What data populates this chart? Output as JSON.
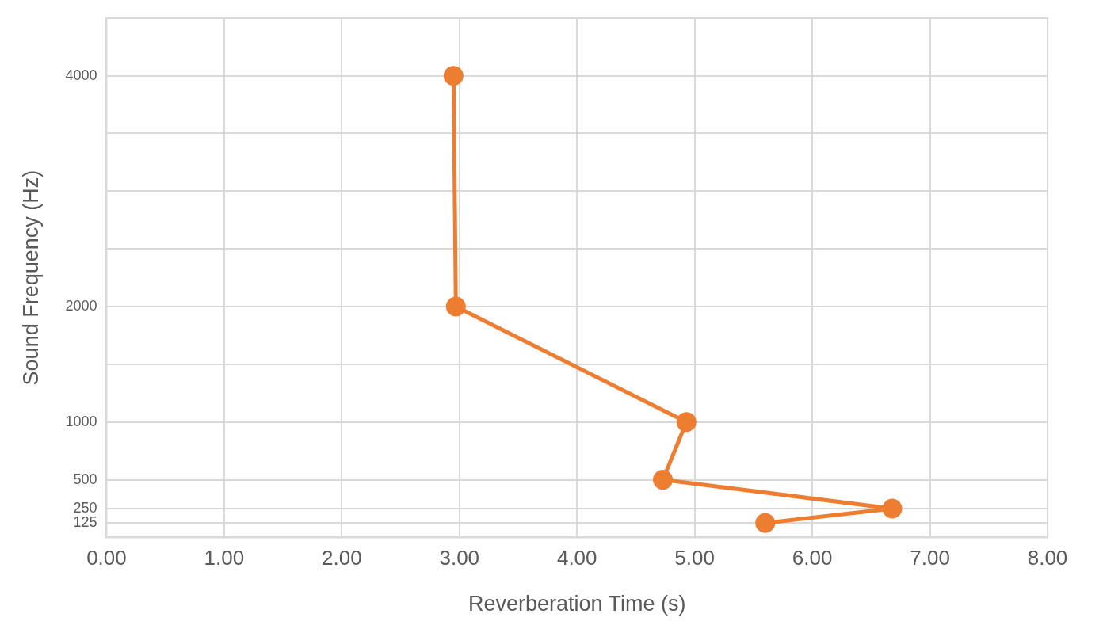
{
  "chart_data": {
    "type": "line",
    "xlabel": "Reverberation Time (s)",
    "ylabel": "Sound Frequency (Hz)",
    "x": [
      2.95,
      2.97,
      4.93,
      4.73,
      6.68,
      5.6
    ],
    "series": [
      {
        "color": "#ed7d31",
        "values": [
          4000,
          2000,
          1000,
          500,
          250,
          125
        ]
      }
    ],
    "xlim": [
      0,
      8
    ],
    "xticks": [
      {
        "value": 0,
        "label": "0.00"
      },
      {
        "value": 1,
        "label": "1.00"
      },
      {
        "value": 2,
        "label": "2.00"
      },
      {
        "value": 3,
        "label": "3.00"
      },
      {
        "value": 4,
        "label": "4.00"
      },
      {
        "value": 5,
        "label": "5.00"
      },
      {
        "value": 6,
        "label": "6.00"
      },
      {
        "value": 7,
        "label": "7.00"
      },
      {
        "value": 8,
        "label": "8.00"
      }
    ],
    "ylim": [
      0,
      4500
    ],
    "yticks": [
      {
        "value": 0,
        "label": null
      },
      125,
      250,
      500,
      1000,
      {
        "value": 1500,
        "label": null
      },
      2000,
      {
        "value": 2500,
        "label": null
      },
      {
        "value": 3000,
        "label": null
      },
      {
        "value": 3500,
        "label": null
      },
      4000,
      {
        "value": 4500,
        "label": null
      }
    ],
    "grid": true,
    "legend": false,
    "marker": "circle",
    "line_style": "solid"
  }
}
